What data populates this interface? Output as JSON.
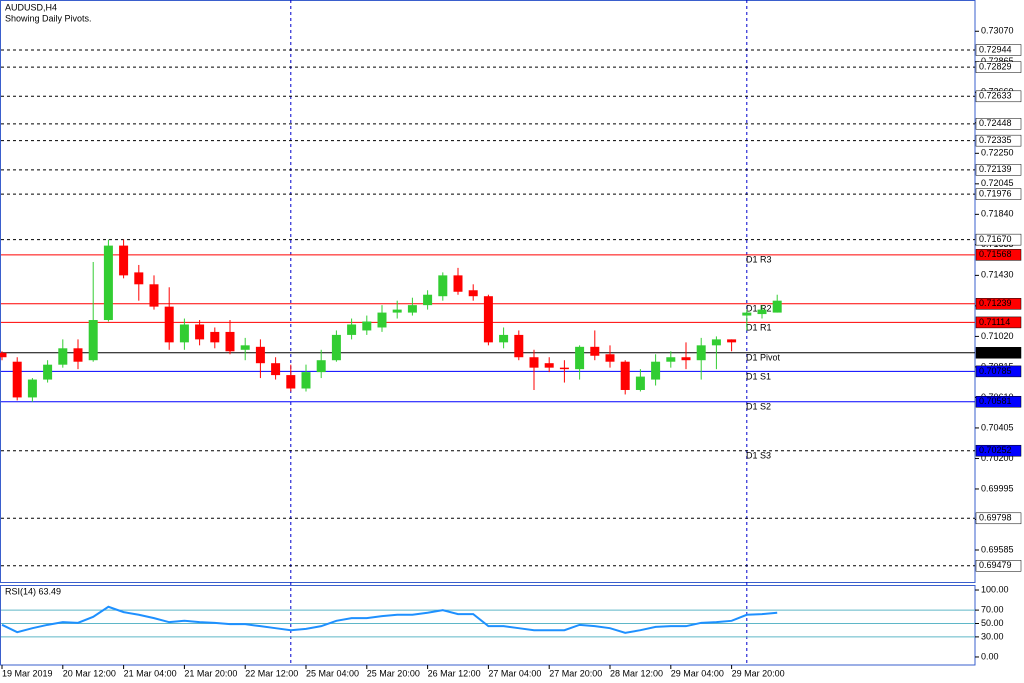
{
  "chart_data": [
    {
      "type": "candlestick",
      "title": "AUDUSD,H4",
      "subtitle": "Showing Daily Pivots.",
      "categories": [
        "19 Mar 2019",
        null,
        null,
        null,
        "20 Mar 12:00",
        null,
        null,
        null,
        "21 Mar 04:00",
        null,
        null,
        null,
        "21 Mar 20:00",
        null,
        null,
        null,
        "22 Mar 12:00",
        null,
        null,
        null,
        "25 Mar 04:00",
        null,
        null,
        null,
        "25 Mar 20:00",
        null,
        null,
        null,
        "26 Mar 12:00",
        null,
        null,
        null,
        "27 Mar 04:00",
        null,
        null,
        null,
        "27 Mar 20:00",
        null,
        null,
        null,
        "28 Mar 12:00",
        null,
        null,
        null,
        "29 Mar 04:00",
        null,
        null,
        null,
        "29 Mar 20:00",
        null,
        null,
        null
      ],
      "open": [
        0.7091,
        0.7085,
        0.7061,
        0.7073,
        0.7083,
        0.7094,
        0.7086,
        0.7113,
        0.7163,
        0.7145,
        0.7137,
        0.7122,
        0.7098,
        0.711,
        0.7105,
        0.7105,
        0.7093,
        0.7095,
        0.7084,
        0.7076,
        0.7067,
        0.7078,
        0.7086,
        0.7103,
        0.7106,
        0.7108,
        0.7118,
        0.7118,
        0.7123,
        0.7129,
        0.7143,
        0.7133,
        0.7129,
        0.7098,
        0.7103,
        0.7088,
        0.7084,
        0.7081,
        0.708,
        0.7095,
        0.709,
        0.7085,
        0.7066,
        0.7073,
        0.7085,
        0.7088,
        0.7086,
        0.7096,
        0.71,
        0.7116,
        0.7117,
        0.7118
      ],
      "high": [
        0.7092,
        0.7088,
        0.7074,
        0.7086,
        0.71,
        0.71,
        0.7152,
        0.7167,
        0.7167,
        0.715,
        0.7143,
        0.7135,
        0.7114,
        0.7113,
        0.7108,
        0.7113,
        0.7101,
        0.71,
        0.7088,
        0.7083,
        0.7083,
        0.7093,
        0.7106,
        0.7114,
        0.7116,
        0.7123,
        0.7126,
        0.7128,
        0.7133,
        0.7145,
        0.7148,
        0.7137,
        0.713,
        0.7108,
        0.7106,
        0.7093,
        0.7088,
        0.7086,
        0.7096,
        0.7106,
        0.7096,
        0.7086,
        0.708,
        0.709,
        0.7092,
        0.7098,
        0.7101,
        0.7102,
        0.71,
        0.712,
        0.7123,
        0.713
      ],
      "low": [
        0.7086,
        0.7059,
        0.7058,
        0.7071,
        0.7081,
        0.708,
        0.7085,
        0.7112,
        0.7141,
        0.7126,
        0.712,
        0.7093,
        0.7093,
        0.7096,
        0.7094,
        0.709,
        0.7086,
        0.7074,
        0.7073,
        0.7065,
        0.7065,
        0.7074,
        0.7085,
        0.71,
        0.7103,
        0.7105,
        0.7114,
        0.7116,
        0.712,
        0.7126,
        0.713,
        0.7126,
        0.7096,
        0.7094,
        0.7086,
        0.7066,
        0.7078,
        0.7071,
        0.7073,
        0.7086,
        0.7081,
        0.7063,
        0.7065,
        0.7069,
        0.7081,
        0.708,
        0.7073,
        0.708,
        0.7092,
        0.7106,
        0.7114,
        0.7118
      ],
      "close": [
        0.7088,
        0.7061,
        0.7073,
        0.7083,
        0.7094,
        0.7085,
        0.7113,
        0.7163,
        0.7143,
        0.7137,
        0.7122,
        0.7098,
        0.711,
        0.71,
        0.7098,
        0.7092,
        0.7096,
        0.7084,
        0.7076,
        0.7067,
        0.7078,
        0.7086,
        0.7103,
        0.711,
        0.7112,
        0.7118,
        0.712,
        0.7123,
        0.713,
        0.7143,
        0.7132,
        0.7129,
        0.7098,
        0.7103,
        0.7088,
        0.7081,
        0.7081,
        0.708,
        0.7095,
        0.7089,
        0.7085,
        0.7066,
        0.7075,
        0.7085,
        0.7088,
        0.7086,
        0.7096,
        0.71,
        0.7098,
        0.7118,
        0.712,
        0.7126
      ],
      "up_color": "#32cd32",
      "down_color": "#ff0000",
      "ylim": [
        0.6937,
        0.7328
      ],
      "yticks": [
        {
          "value": 0.7307,
          "label": "0.73070"
        },
        0.72865,
        {
          "value": 0.7266,
          "label": "0.72660"
        },
        0.72455,
        {
          "value": 0.7225,
          "label": "0.72250"
        },
        0.72045,
        {
          "value": 0.7184,
          "label": "0.71840"
        },
        0.71635,
        {
          "value": 0.7143,
          "label": "0.71430"
        },
        0.71225,
        {
          "value": 0.7102,
          "label": "0.71020"
        },
        0.70815,
        {
          "value": 0.7061,
          "label": "0.70610"
        },
        0.70405,
        {
          "value": 0.702,
          "label": "0.70200"
        },
        0.69995,
        {
          "value": 0.6979,
          "label": "0.69790"
        },
        0.69585
      ],
      "levels": [
        0.72944,
        0.72829,
        0.72633,
        0.72448,
        0.72335,
        0.72139,
        0.71976,
        {
          "value": 0.7167,
          "label": "0.71670"
        },
        0.69798,
        0.69479
      ],
      "pivots": [
        {
          "name": "D1 R3",
          "value": 0.71568,
          "color": "#ff0000",
          "dashed": false
        },
        {
          "name": "D1 R2",
          "value": 0.71239,
          "color": "#ff0000",
          "dashed": false
        },
        {
          "name": "D1 R1",
          "value": 0.71114,
          "color": "#ff0000",
          "dashed": false
        },
        {
          "name": "D1 Pivot",
          "value": 0.7091,
          "label": "0.70910",
          "color": "#000000",
          "dashed": false
        },
        {
          "name": "D1 S1",
          "value": 0.70785,
          "color": "#0000ff",
          "dashed": false
        },
        {
          "name": "D1 S2",
          "value": 0.70581,
          "color": "#0000ff",
          "dashed": false
        },
        {
          "name": "D1 S3",
          "value": 0.70252,
          "color": "#0000ff",
          "dashed": true
        }
      ]
    },
    {
      "type": "line",
      "title": "RSI(14) 63.49",
      "color": "#1e90ff",
      "values": [
        48,
        37,
        43,
        48,
        52,
        51,
        60,
        75,
        67,
        63,
        58,
        52,
        54,
        52,
        51,
        49,
        49,
        46,
        43,
        40,
        42,
        46,
        54,
        58,
        58,
        61,
        63,
        63,
        66,
        70,
        64,
        64,
        46,
        46,
        43,
        40,
        40,
        40,
        48,
        46,
        43,
        36,
        40,
        45,
        46,
        46,
        51,
        52,
        54,
        63,
        64,
        66
      ],
      "ylim": [
        -12,
        107.5
      ],
      "yticks": [
        {
          "value": 100,
          "label": "100.00"
        },
        {
          "value": 70,
          "label": "70.00"
        },
        {
          "value": 50,
          "label": "50.00"
        },
        {
          "value": 30,
          "label": "30.00"
        },
        {
          "value": 0,
          "label": "0.00"
        }
      ],
      "hlines": [
        70,
        50,
        30
      ]
    }
  ]
}
